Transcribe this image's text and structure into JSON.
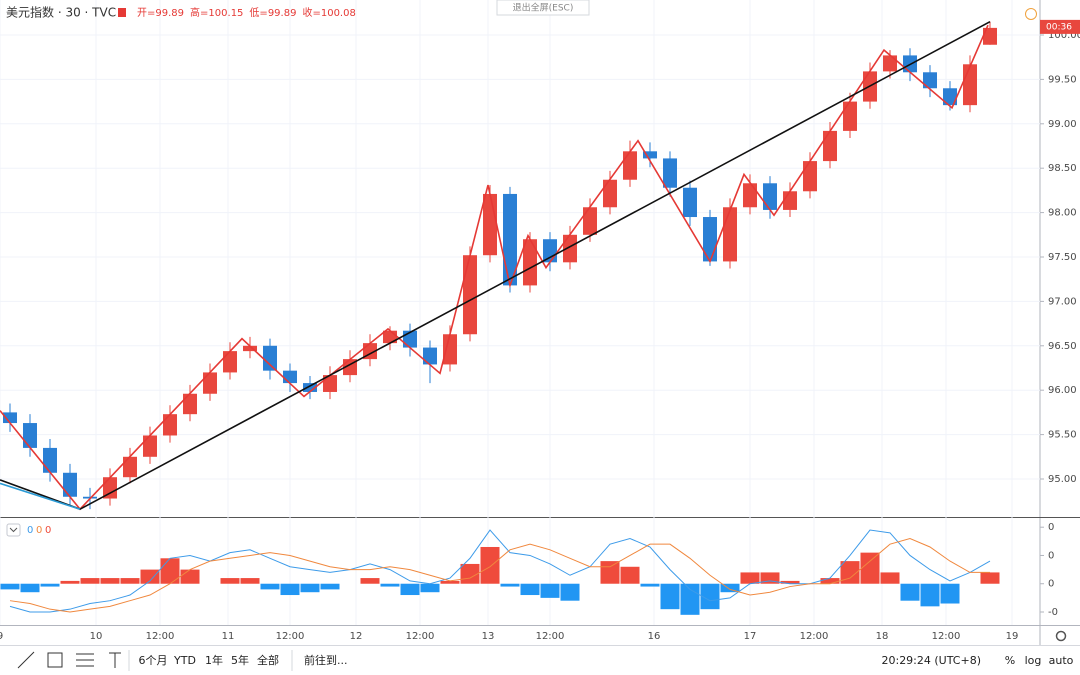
{
  "chart_data": {
    "type": "candlestick",
    "title": "美元指数 · 30 · TVC",
    "ohlc_header": [
      {
        "label": "开=",
        "value": 99.89
      },
      {
        "label": "高=",
        "value": 100.15
      },
      {
        "label": "低=",
        "value": 99.89
      },
      {
        "label": "收=",
        "value": 100.08
      }
    ],
    "exit_button": "退出全屏(ESC)",
    "last_price_label": "00:36",
    "up_color": "#e8473e",
    "down_color": "#2a7fd4",
    "x": [
      5,
      15,
      25,
      35,
      45,
      55,
      65,
      75,
      85,
      95,
      105,
      115,
      125,
      135,
      145,
      155,
      165,
      175,
      185,
      195,
      205,
      215,
      225,
      235,
      245,
      255,
      265,
      275,
      285,
      295,
      305,
      315,
      325,
      335,
      345,
      355,
      365,
      375,
      385,
      395,
      405,
      415,
      425,
      435,
      445,
      455,
      465,
      475,
      485,
      495
    ],
    "open": [
      95.75,
      95.63,
      95.35,
      95.07,
      94.8,
      94.78,
      95.02,
      95.25,
      95.49,
      95.73,
      95.96,
      96.2,
      96.44,
      96.5,
      96.22,
      96.08,
      95.98,
      96.17,
      96.35,
      96.53,
      96.67,
      96.48,
      96.29,
      96.63,
      97.52,
      98.21,
      97.18,
      97.7,
      97.44,
      97.75,
      98.06,
      98.37,
      98.69,
      98.61,
      98.28,
      97.95,
      97.45,
      98.06,
      98.33,
      98.03,
      98.24,
      98.58,
      98.92,
      99.25,
      99.59,
      99.77,
      99.58,
      99.4,
      99.21,
      99.89
    ],
    "high": [
      95.85,
      95.73,
      95.45,
      95.17,
      94.9,
      95.12,
      95.35,
      95.59,
      95.83,
      96.06,
      96.3,
      96.54,
      96.6,
      96.58,
      96.3,
      96.16,
      96.27,
      96.45,
      96.63,
      96.72,
      96.75,
      96.56,
      96.73,
      97.62,
      98.31,
      98.29,
      97.78,
      97.78,
      97.85,
      98.16,
      98.47,
      98.81,
      98.79,
      98.69,
      98.36,
      98.03,
      98.16,
      98.43,
      98.41,
      98.34,
      98.68,
      99.02,
      99.35,
      99.69,
      99.83,
      99.85,
      99.66,
      99.48,
      99.77,
      100.15
    ],
    "low": [
      95.53,
      95.25,
      94.97,
      94.7,
      94.66,
      94.7,
      94.95,
      95.17,
      95.41,
      95.65,
      95.88,
      96.12,
      96.36,
      96.12,
      95.98,
      95.9,
      95.9,
      96.09,
      96.27,
      96.45,
      96.38,
      96.08,
      96.21,
      96.55,
      97.44,
      97.1,
      97.1,
      97.34,
      97.36,
      97.67,
      97.98,
      98.29,
      98.51,
      98.18,
      97.85,
      97.4,
      97.37,
      97.98,
      97.93,
      97.95,
      98.16,
      98.5,
      98.84,
      99.17,
      99.51,
      99.48,
      99.3,
      99.15,
      99.13,
      99.89
    ],
    "close": [
      95.63,
      95.35,
      95.07,
      94.8,
      94.78,
      95.02,
      95.25,
      95.49,
      95.73,
      95.96,
      96.2,
      96.44,
      96.5,
      96.22,
      96.08,
      95.98,
      96.17,
      96.35,
      96.53,
      96.67,
      96.48,
      96.29,
      96.63,
      97.52,
      98.21,
      97.18,
      97.7,
      97.44,
      97.75,
      98.06,
      98.37,
      98.69,
      98.61,
      98.28,
      97.95,
      97.45,
      98.06,
      98.33,
      98.03,
      98.24,
      98.58,
      98.92,
      99.25,
      99.59,
      99.77,
      99.58,
      99.4,
      99.21,
      99.67,
      100.08
    ],
    "xlim": [
      0,
      520
    ],
    "ylim": [
      94.572,
      100.394
    ],
    "xticks": [
      {
        "value": 0,
        "label": "9"
      },
      {
        "value": 48,
        "label": "10"
      },
      {
        "value": 80,
        "label": "12:00"
      },
      {
        "value": 114,
        "label": "11"
      },
      {
        "value": 145,
        "label": "12:00"
      },
      {
        "value": 178,
        "label": "12"
      },
      {
        "value": 210,
        "label": "12:00"
      },
      {
        "value": 244,
        "label": "13"
      },
      {
        "value": 275,
        "label": "12:00"
      },
      {
        "value": 327,
        "label": "16"
      },
      {
        "value": 375,
        "label": "17"
      },
      {
        "value": 407,
        "label": "12:00"
      },
      {
        "value": 441,
        "label": "18"
      },
      {
        "value": 473,
        "label": "12:00"
      },
      {
        "value": 506,
        "label": "19"
      }
    ],
    "yticks": [
      {
        "value": 95,
        "label": "95.00"
      },
      {
        "value": 95.5,
        "label": "95.50"
      },
      {
        "value": 96,
        "label": "96.00"
      },
      {
        "value": 96.5,
        "label": "96.50"
      },
      {
        "value": 97,
        "label": "97.00"
      },
      {
        "value": 97.5,
        "label": "97.50"
      },
      {
        "value": 98,
        "label": "98.00"
      },
      {
        "value": 98.5,
        "label": "98.50"
      },
      {
        "value": 99,
        "label": "99.00"
      },
      {
        "value": 99.5,
        "label": "99.50"
      },
      {
        "value": 100,
        "label": "100.00"
      }
    ],
    "grid": true,
    "drawings": [
      {
        "color": "#e53935",
        "x": [
          0,
          40,
          121,
          152,
          194,
          220,
          244,
          255,
          264,
          273,
          319,
          355,
          372,
          387,
          442,
          476,
          494
        ],
        "y": [
          95.77,
          94.66,
          96.58,
          95.93,
          96.69,
          96.19,
          98.31,
          97.18,
          97.74,
          97.38,
          98.81,
          97.45,
          98.43,
          97.97,
          99.83,
          99.18,
          100.11
        ]
      },
      {
        "color": "#111111",
        "x": [
          0,
          40,
          495
        ],
        "y": [
          94.99,
          94.66,
          100.15
        ]
      },
      {
        "color": "#2a9ad4",
        "x": [
          0,
          40
        ],
        "y": [
          94.95,
          94.66
        ]
      }
    ],
    "indicator": {
      "legend": [
        0,
        0,
        0
      ],
      "ylim": [
        -0.146,
        0.229
      ],
      "yticks": [
        {
          "value": 0.2,
          "label": "0"
        },
        {
          "value": 0.1,
          "label": "0"
        },
        {
          "value": 0,
          "label": "0"
        },
        {
          "value": -0.1,
          "label": "-0"
        }
      ],
      "histogram_up_color": "#ef4b3c",
      "histogram_down_color": "#2196f3",
      "histogram": [
        -0.02,
        -0.03,
        -0.01,
        0.01,
        0.02,
        0.02,
        0.02,
        0.05,
        0.09,
        0.05,
        0.0,
        0.02,
        0.02,
        -0.02,
        -0.04,
        -0.03,
        -0.02,
        0.0,
        0.02,
        -0.01,
        -0.04,
        -0.03,
        0.01,
        0.07,
        0.13,
        -0.01,
        -0.04,
        -0.05,
        -0.06,
        0.0,
        0.08,
        0.06,
        -0.01,
        -0.09,
        -0.11,
        -0.09,
        -0.03,
        0.04,
        0.04,
        0.01,
        0.0,
        0.02,
        0.08,
        0.11,
        0.04,
        -0.06,
        -0.08,
        -0.07,
        0.0,
        0.04
      ],
      "series": [
        {
          "color": "#3d9be9",
          "values": [
            -0.08,
            -0.1,
            -0.1,
            -0.09,
            -0.07,
            -0.06,
            -0.04,
            0.01,
            0.09,
            0.1,
            0.08,
            0.11,
            0.12,
            0.09,
            0.06,
            0.05,
            0.04,
            0.05,
            0.07,
            0.05,
            0.01,
            0.0,
            0.02,
            0.09,
            0.19,
            0.11,
            0.1,
            0.07,
            0.03,
            0.06,
            0.14,
            0.16,
            0.13,
            0.05,
            -0.02,
            -0.06,
            -0.05,
            0.0,
            0.01,
            0.0,
            0.0,
            0.02,
            0.1,
            0.19,
            0.18,
            0.1,
            0.05,
            0.01,
            0.04,
            0.08
          ]
        },
        {
          "color": "#f0883e",
          "values": [
            -0.06,
            -0.07,
            -0.09,
            -0.1,
            -0.09,
            -0.08,
            -0.06,
            -0.04,
            0.0,
            0.05,
            0.08,
            0.09,
            0.1,
            0.11,
            0.1,
            0.08,
            0.06,
            0.05,
            0.05,
            0.06,
            0.05,
            0.03,
            0.01,
            0.02,
            0.06,
            0.12,
            0.14,
            0.12,
            0.09,
            0.06,
            0.06,
            0.1,
            0.14,
            0.14,
            0.09,
            0.03,
            -0.02,
            -0.04,
            -0.03,
            -0.01,
            0.0,
            0.0,
            0.02,
            0.08,
            0.14,
            0.16,
            0.13,
            0.08,
            0.04,
            0.04
          ]
        }
      ]
    },
    "toolbar": {
      "ranges": [
        "6个月",
        "YTD",
        "1年",
        "5年",
        "全部"
      ],
      "goto": "前往到...",
      "clock": "20:29:24 (UTC+8)",
      "options": [
        "%",
        "log",
        "auto"
      ]
    }
  }
}
